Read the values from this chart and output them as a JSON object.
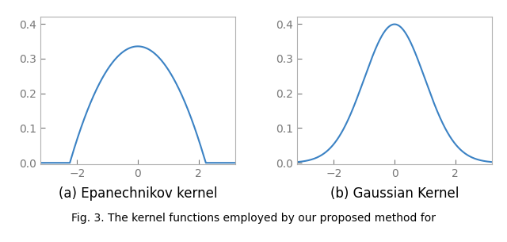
{
  "line_color": "#3b82c4",
  "line_width": 1.5,
  "background_color": "#ffffff",
  "xlim": [
    -3.2,
    3.2
  ],
  "ylim": [
    -0.005,
    0.42
  ],
  "yticks": [
    0.0,
    0.1,
    0.2,
    0.3,
    0.4
  ],
  "xticks": [
    -2,
    0,
    2
  ],
  "epan_bandwidth": 2.236,
  "subplot1_xlabel": "(a) Epanechnikov kernel",
  "subplot2_xlabel": "(b) Gaussian Kernel",
  "caption": "Fig. 3. The kernel functions employed by our proposed method for",
  "caption_fontsize": 10,
  "xlabel_fontsize": 12,
  "tick_fontsize": 10,
  "figsize": [
    6.4,
    3.05
  ],
  "dpi": 100,
  "spine_color": "#b0b0b0",
  "tick_color": "#777777"
}
